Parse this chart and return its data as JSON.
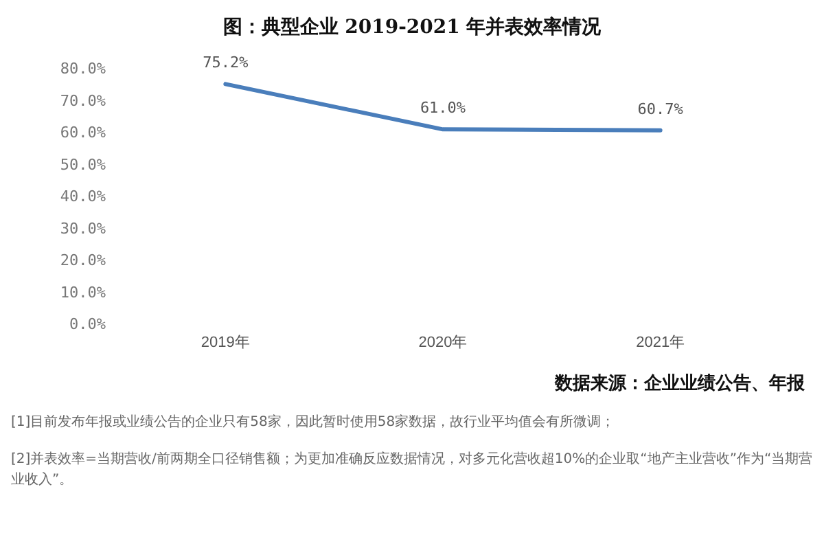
{
  "chart_data": {
    "type": "line",
    "title": "图：典型企业 2019-2021 年并表效率情况",
    "categories": [
      "2019年",
      "2020年",
      "2021年"
    ],
    "series": [
      {
        "color": "#4a7ebb",
        "values": [
          75.2,
          61.0,
          60.7
        ],
        "value_labels": [
          "75.2%",
          "61.0%",
          "60.7%"
        ]
      }
    ],
    "ylim": [
      0,
      80
    ],
    "yticks": [
      {
        "value": 0,
        "label": "0.0%"
      },
      {
        "value": 10,
        "label": "10.0%"
      },
      {
        "value": 20,
        "label": "20.0%"
      },
      {
        "value": 30,
        "label": "30.0%"
      },
      {
        "value": 40,
        "label": "40.0%"
      },
      {
        "value": 50,
        "label": "50.0%"
      },
      {
        "value": 60,
        "label": "60.0%"
      },
      {
        "value": 70,
        "label": "70.0%"
      },
      {
        "value": 80,
        "label": "80.0%"
      }
    ],
    "grid": false,
    "marker": "none",
    "line_style": "solid",
    "annotations": [
      "数据来源：企业业绩公告、年报",
      "[1]目前发布年报或业绩公告的企业只有58家，因此暂时使用58家数据，故行业平均值会有所微调；",
      "[2]并表效率=当期营收/前两期全口径销售额；为更加准确反应数据情况，对多元化营收超10%的企业取“地产主业营收”作为“当期营业收入”。"
    ]
  }
}
